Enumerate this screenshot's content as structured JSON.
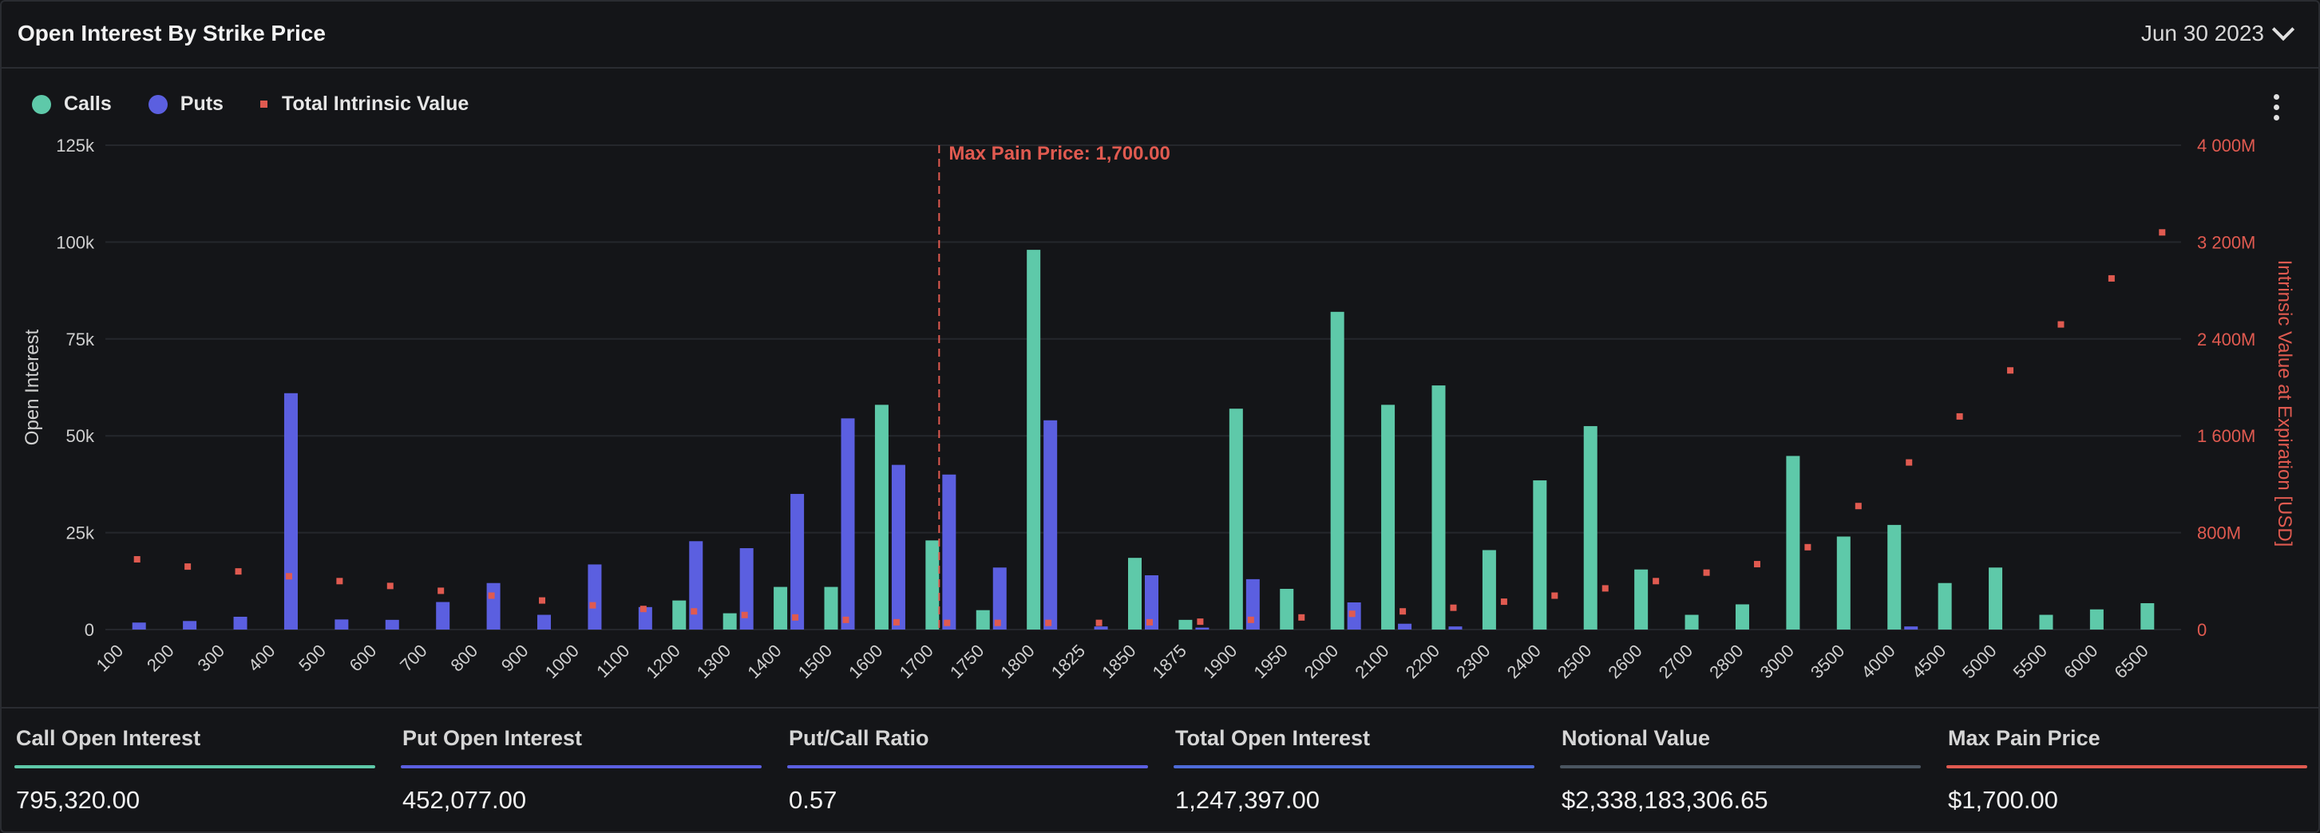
{
  "header": {
    "title": "Open Interest By Strike Price",
    "date": "Jun 30 2023"
  },
  "legend": [
    {
      "label": "Calls",
      "color": "#5ec9a9",
      "shape": "circle"
    },
    {
      "label": "Puts",
      "color": "#5b5fe0",
      "shape": "circle"
    },
    {
      "label": "Total Intrinsic Value",
      "color": "#e05a50",
      "shape": "square"
    }
  ],
  "colors": {
    "calls": "#5ec9a9",
    "puts": "#5b5fe0",
    "intrinsic": "#e05a50",
    "grid": "#25272c",
    "axis_text": "#d0d0d0"
  },
  "chart_data": {
    "type": "bar",
    "categories": [
      "100",
      "200",
      "300",
      "400",
      "500",
      "600",
      "700",
      "800",
      "900",
      "1000",
      "1100",
      "1200",
      "1300",
      "1400",
      "1500",
      "1600",
      "1700",
      "1750",
      "1800",
      "1825",
      "1850",
      "1875",
      "1900",
      "1950",
      "2000",
      "2100",
      "2200",
      "2300",
      "2400",
      "2500",
      "2600",
      "2700",
      "2800",
      "3000",
      "3500",
      "4000",
      "4500",
      "5000",
      "5500",
      "6000",
      "6500"
    ],
    "series": [
      {
        "name": "Calls",
        "type": "bar",
        "axis": "left",
        "values": [
          0,
          0,
          0,
          0,
          0,
          0,
          0,
          0,
          0,
          0,
          0,
          7500,
          4200,
          11000,
          11000,
          58000,
          23000,
          5000,
          98000,
          0,
          18500,
          2500,
          57000,
          10500,
          82000,
          58000,
          63000,
          20500,
          38500,
          52500,
          15500,
          3800,
          6500,
          44800,
          24000,
          27000,
          12000,
          16000,
          3800,
          5200,
          6800
        ]
      },
      {
        "name": "Puts",
        "type": "bar",
        "axis": "left",
        "values": [
          1800,
          2200,
          3300,
          61000,
          2600,
          2500,
          7100,
          12000,
          3800,
          16800,
          5800,
          22800,
          21000,
          35000,
          54500,
          42500,
          40000,
          16000,
          54000,
          800,
          14000,
          500,
          13000,
          0,
          7000,
          1500,
          800,
          0,
          0,
          0,
          0,
          0,
          0,
          0,
          0,
          800,
          0,
          0,
          0,
          0,
          0
        ]
      },
      {
        "name": "Total Intrinsic Value",
        "type": "scatter",
        "axis": "right",
        "values": [
          580,
          520,
          480,
          440,
          400,
          360,
          320,
          280,
          240,
          200,
          170,
          150,
          120,
          100,
          80,
          60,
          55,
          55,
          55,
          55,
          60,
          65,
          80,
          100,
          130,
          150,
          180,
          230,
          280,
          340,
          400,
          470,
          540,
          680,
          1020,
          1380,
          1760,
          2140,
          2520,
          2900,
          3280
        ]
      }
    ],
    "y_left": {
      "label": "Open Interest",
      "min": 0,
      "max": 125000,
      "ticks": [
        "0",
        "25k",
        "50k",
        "75k",
        "100k",
        "125k"
      ]
    },
    "y_right": {
      "label": "Intrinsic Value at Expiration [USD]",
      "min": 0,
      "max": 4000,
      "ticks": [
        "0",
        "800M",
        "1 600M",
        "2 400M",
        "3 200M",
        "4 000M"
      ]
    },
    "annotation": {
      "label": "Max Pain Price: 1,700.00",
      "category": "1700"
    },
    "grid": true,
    "legend_position": "top-left"
  },
  "stats": [
    {
      "label": "Call Open Interest",
      "value": "795,320.00",
      "color": "#5ec9a9"
    },
    {
      "label": "Put Open Interest",
      "value": "452,077.00",
      "color": "#5b5fe0"
    },
    {
      "label": "Put/Call Ratio",
      "value": "0.57",
      "color": "#5b5fe0"
    },
    {
      "label": "Total Open Interest",
      "value": "1,247,397.00",
      "color": "#4e6bd8"
    },
    {
      "label": "Notional Value",
      "value": "$2,338,183,306.65",
      "color": "#4a5560"
    },
    {
      "label": "Max Pain Price",
      "value": "$1,700.00",
      "color": "#e05a50"
    }
  ]
}
